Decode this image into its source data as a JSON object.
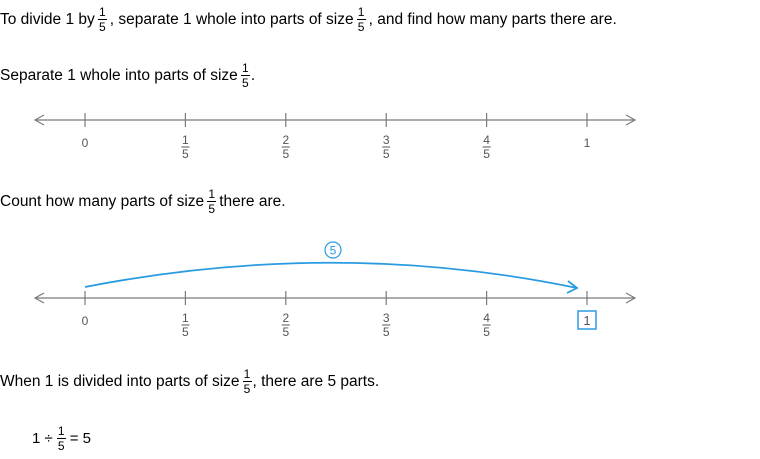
{
  "intro": {
    "part1": "To divide 1 by",
    "part2": ", separate 1 whole into parts of size",
    "part3": ", and find how many parts there are.",
    "frac_num": "1",
    "frac_den": "5"
  },
  "step1": {
    "text": "Separate 1 whole into parts of size",
    "end": ".",
    "frac_num": "1",
    "frac_den": "5"
  },
  "number_line_1": {
    "labels": [
      {
        "type": "whole",
        "text": "0"
      },
      {
        "type": "frac",
        "num": "1",
        "den": "5"
      },
      {
        "type": "frac",
        "num": "2",
        "den": "5"
      },
      {
        "type": "frac",
        "num": "3",
        "den": "5"
      },
      {
        "type": "frac",
        "num": "4",
        "den": "5"
      },
      {
        "type": "whole",
        "text": "1"
      }
    ]
  },
  "step2": {
    "text": "Count how many parts of size",
    "end": "there are.",
    "frac_num": "1",
    "frac_den": "5"
  },
  "number_line_2": {
    "jump_label": "5",
    "highlight_label": "1",
    "labels": [
      {
        "type": "whole",
        "text": "0"
      },
      {
        "type": "frac",
        "num": "1",
        "den": "5"
      },
      {
        "type": "frac",
        "num": "2",
        "den": "5"
      },
      {
        "type": "frac",
        "num": "3",
        "den": "5"
      },
      {
        "type": "frac",
        "num": "4",
        "den": "5"
      }
    ],
    "accent_color": "#2a9be0"
  },
  "conclusion": {
    "text": "When 1 is divided into parts of size",
    "end": ", there are 5 parts.",
    "frac_num": "1",
    "frac_den": "5"
  },
  "equation": {
    "left": "1 ÷",
    "frac_num": "1",
    "frac_den": "5",
    "right": "= 5"
  }
}
